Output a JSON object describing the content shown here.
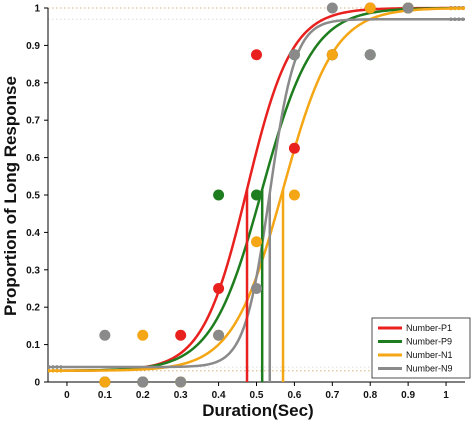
{
  "chart_data": {
    "type": "scatter",
    "xlabel": "Duration(Sec)",
    "ylabel": "Proportion of Long Response",
    "xlim": [
      -0.05,
      1.05
    ],
    "ylim": [
      0,
      1
    ],
    "x_ticks": [
      0,
      0.1,
      0.2,
      0.3,
      0.4,
      0.5,
      0.6,
      0.7,
      0.8,
      0.9,
      1
    ],
    "x_tick_labels": [
      "0",
      "0.1",
      "0.2",
      "0.3",
      "0.4",
      "0.5",
      "0.6",
      "0.7",
      "0.8",
      "0.9",
      "1"
    ],
    "y_ticks": [
      0,
      0.1,
      0.2,
      0.3,
      0.4,
      0.5,
      0.6,
      0.7,
      0.8,
      0.9,
      1
    ],
    "y_tick_labels": [
      "0",
      "0.1",
      "0.2",
      "0.3",
      "0.4",
      "0.5",
      "0.6",
      "0.7",
      "0.8",
      "0.9",
      "1"
    ],
    "legend_position": "bottom-right",
    "series": [
      {
        "name": "Number-P1",
        "color": "#e8201e",
        "points": [
          [
            0.1,
            0.0
          ],
          [
            0.2,
            0.0
          ],
          [
            0.3,
            0.125
          ],
          [
            0.4,
            0.25
          ],
          [
            0.5,
            0.875
          ],
          [
            0.6,
            0.625
          ],
          [
            0.7,
            0.875
          ],
          [
            0.8,
            1.0
          ],
          [
            0.9,
            1.0
          ]
        ],
        "fit": {
          "threshold": 0.475,
          "slope": 17,
          "lower": 0.03,
          "upper": 1.0
        }
      },
      {
        "name": "Number-P9",
        "color": "#1e7d1e",
        "points": [
          [
            0.1,
            0.0
          ],
          [
            0.2,
            0.0
          ],
          [
            0.3,
            0.0
          ],
          [
            0.4,
            0.5
          ],
          [
            0.5,
            0.5
          ],
          [
            0.6,
            0.875
          ],
          [
            0.7,
            0.875
          ],
          [
            0.8,
            0.875
          ],
          [
            0.9,
            1.0
          ]
        ],
        "fit": {
          "threshold": 0.515,
          "slope": 15,
          "lower": 0.03,
          "upper": 1.0
        }
      },
      {
        "name": "Number-N1",
        "color": "#f5a614",
        "points": [
          [
            0.1,
            0.0
          ],
          [
            0.2,
            0.125
          ],
          [
            0.3,
            0.0
          ],
          [
            0.4,
            0.125
          ],
          [
            0.5,
            0.375
          ],
          [
            0.6,
            0.5
          ],
          [
            0.7,
            0.875
          ],
          [
            0.8,
            1.0
          ],
          [
            0.9,
            1.0
          ]
        ],
        "fit": {
          "threshold": 0.57,
          "slope": 15,
          "lower": 0.03,
          "upper": 1.0
        }
      },
      {
        "name": "Number-N9",
        "color": "#8a8a8a",
        "points": [
          [
            0.1,
            0.125
          ],
          [
            0.2,
            0.0
          ],
          [
            0.3,
            0.0
          ],
          [
            0.4,
            0.125
          ],
          [
            0.5,
            0.25
          ],
          [
            0.6,
            0.875
          ],
          [
            0.7,
            1.0
          ],
          [
            0.8,
            0.875
          ],
          [
            0.9,
            1.0
          ]
        ],
        "fit": {
          "threshold": 0.535,
          "slope": 30,
          "lower": 0.04,
          "upper": 0.97
        }
      }
    ]
  }
}
